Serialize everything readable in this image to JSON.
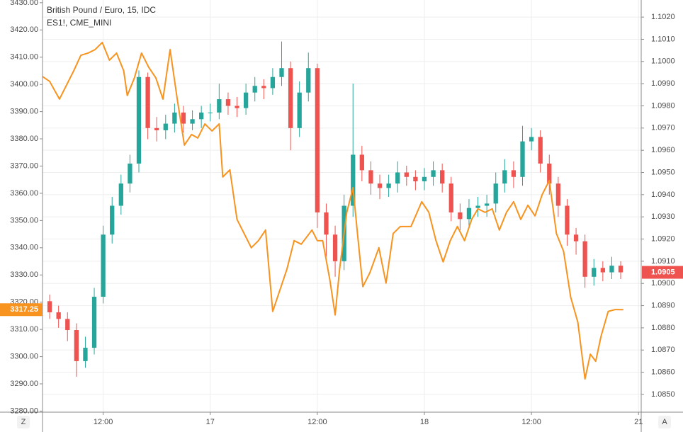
{
  "chart_data": {
    "type": "candlestick",
    "xlim": [
      -18.8,
      48.3
    ],
    "xticks": [
      {
        "value": -12,
        "label": "12:00"
      },
      {
        "value": 0,
        "label": "17"
      },
      {
        "value": 12,
        "label": "12:00"
      },
      {
        "value": 24,
        "label": "18"
      },
      {
        "value": 36,
        "label": "12:00"
      },
      {
        "value": 48,
        "label": "21"
      }
    ],
    "ylim": [
      3279.6,
      3431.0
    ],
    "yticks": [
      {
        "value": 3280,
        "label": "3280.00"
      },
      {
        "value": 3290,
        "label": "3290.00"
      },
      {
        "value": 3300,
        "label": "3300.00"
      },
      {
        "value": 3310,
        "label": "3310.00"
      },
      {
        "value": 3320,
        "label": "3320.00"
      },
      {
        "value": 3330,
        "label": "3330.00"
      },
      {
        "value": 3340,
        "label": "3340.00"
      },
      {
        "value": 3350,
        "label": "3350.00"
      },
      {
        "value": 3360,
        "label": "3360.00"
      },
      {
        "value": 3370,
        "label": "3370.00"
      },
      {
        "value": 3380,
        "label": "3380.00"
      },
      {
        "value": 3390,
        "label": "3390.00"
      },
      {
        "value": 3400,
        "label": "3400.00"
      },
      {
        "value": 3410,
        "label": "3410.00"
      },
      {
        "value": 3420,
        "label": "3420.00"
      },
      {
        "value": 3430,
        "label": "3430.00"
      }
    ],
    "y2lim": [
      1.0842,
      1.10277
    ],
    "y2ticks": [
      {
        "value": 1.085,
        "label": "1.0850"
      },
      {
        "value": 1.086,
        "label": "1.0860"
      },
      {
        "value": 1.087,
        "label": "1.0870"
      },
      {
        "value": 1.088,
        "label": "1.0880"
      },
      {
        "value": 1.089,
        "label": "1.0890"
      },
      {
        "value": 1.09,
        "label": "1.0900"
      },
      {
        "value": 1.091,
        "label": "1.0910"
      },
      {
        "value": 1.092,
        "label": "1.0920"
      },
      {
        "value": 1.093,
        "label": "1.0930"
      },
      {
        "value": 1.094,
        "label": "1.0940"
      },
      {
        "value": 1.095,
        "label": "1.0950"
      },
      {
        "value": 1.096,
        "label": "1.0960"
      },
      {
        "value": 1.097,
        "label": "1.0970"
      },
      {
        "value": 1.098,
        "label": "1.0980"
      },
      {
        "value": 1.099,
        "label": "1.0990"
      },
      {
        "value": 1.1,
        "label": "1.1000"
      },
      {
        "value": 1.101,
        "label": "1.1010"
      },
      {
        "value": 1.102,
        "label": "1.1020"
      }
    ],
    "grid": true,
    "buttons": [
      "Z",
      "A"
    ],
    "series": [
      {
        "name": "British Pound / Euro, 15, IDC",
        "type": "candlestick",
        "axis": "y2",
        "up_color": "#26a69a",
        "down_color": "#ef5350",
        "last_label": "1.0905",
        "x": [
          -18,
          -17,
          -16,
          -15,
          -14,
          -13,
          -12,
          -11,
          -10,
          -9,
          -8,
          -7,
          -6,
          -5,
          -4,
          -3,
          -2,
          -1,
          0,
          1,
          2,
          3,
          4,
          5,
          6,
          7,
          8,
          9,
          10,
          11,
          12,
          13,
          14,
          15,
          16,
          17,
          18,
          19,
          20,
          21,
          22,
          23,
          24,
          25,
          26,
          27,
          28,
          29,
          30,
          31,
          32,
          33,
          34,
          35,
          36,
          37,
          38,
          39,
          40,
          41,
          42,
          43,
          44,
          45,
          46
        ],
        "open": [
          1.0892,
          1.0887,
          1.0884,
          1.0879,
          1.0865,
          1.0871,
          1.0894,
          1.0922,
          1.0935,
          1.0945,
          1.0954,
          1.0993,
          1.097,
          1.0969,
          1.0972,
          1.0977,
          1.0972,
          1.0974,
          1.0977,
          1.0977,
          1.0983,
          1.098,
          1.0979,
          1.0986,
          1.0989,
          1.0988,
          1.0993,
          1.0997,
          1.097,
          1.0986,
          1.0997,
          1.0932,
          1.0922,
          1.091,
          1.0935,
          1.0958,
          1.0951,
          1.0945,
          1.0943,
          1.0945,
          1.095,
          1.0948,
          1.0946,
          1.0948,
          1.0951,
          1.0945,
          1.0932,
          1.0929,
          1.0934,
          1.0935,
          1.0936,
          1.0945,
          1.0951,
          1.0948,
          1.0964,
          1.0966,
          1.0954,
          1.0945,
          1.0935,
          1.0922,
          1.0919,
          1.0903,
          1.0907,
          1.0905,
          1.0908
        ],
        "high": [
          1.0895,
          1.089,
          1.0887,
          1.0882,
          1.0876,
          1.0898,
          1.0926,
          1.0939,
          1.0949,
          1.0958,
          1.0996,
          1.0995,
          1.0975,
          1.0976,
          1.0981,
          1.098,
          1.0978,
          1.098,
          1.0981,
          1.099,
          1.0986,
          1.0984,
          1.099,
          1.0993,
          1.0992,
          1.0997,
          1.1009,
          1.1,
          1.0991,
          1.1004,
          1.0999,
          1.0936,
          1.0926,
          1.094,
          1.099,
          1.0962,
          1.0955,
          1.0949,
          1.0949,
          1.0955,
          1.0953,
          1.0951,
          1.0952,
          1.0955,
          1.0954,
          1.0948,
          1.0936,
          1.0938,
          1.0939,
          1.094,
          1.095,
          1.0956,
          1.0955,
          1.0971,
          1.097,
          1.0969,
          1.0958,
          1.0948,
          1.0938,
          1.0925,
          1.0922,
          1.0911,
          1.091,
          1.0912,
          1.091
        ],
        "low": [
          1.0884,
          1.088,
          1.0874,
          1.0858,
          1.0862,
          1.0868,
          1.0891,
          1.0918,
          1.0931,
          1.0941,
          1.095,
          1.0965,
          1.0964,
          1.0965,
          1.0968,
          1.0968,
          1.0969,
          1.097,
          1.0973,
          1.0974,
          1.0976,
          1.0975,
          1.0976,
          1.0982,
          1.0983,
          1.0985,
          1.0989,
          1.096,
          1.0966,
          1.0982,
          1.0925,
          1.0912,
          1.0903,
          1.0906,
          1.093,
          1.0946,
          1.094,
          1.0938,
          1.0939,
          1.0941,
          1.0944,
          1.0942,
          1.0942,
          1.0944,
          1.0941,
          1.0928,
          1.0924,
          1.0925,
          1.093,
          1.093,
          1.0932,
          1.0941,
          1.0943,
          1.0944,
          1.096,
          1.095,
          1.094,
          1.093,
          1.0917,
          1.0913,
          1.0898,
          1.0899,
          1.0901,
          1.0902,
          1.0902
        ],
        "close": [
          1.0887,
          1.0884,
          1.0879,
          1.0865,
          1.0871,
          1.0894,
          1.0922,
          1.0935,
          1.0945,
          1.0954,
          1.0993,
          1.097,
          1.0969,
          1.0972,
          1.0977,
          1.0972,
          1.0974,
          1.0977,
          1.0977,
          1.0983,
          1.098,
          1.0979,
          1.0986,
          1.0989,
          1.0988,
          1.0993,
          1.0997,
          1.097,
          1.0986,
          1.0997,
          1.0932,
          1.0922,
          1.091,
          1.0935,
          1.0958,
          1.0951,
          1.0945,
          1.0943,
          1.0945,
          1.095,
          1.0948,
          1.0946,
          1.0948,
          1.0951,
          1.0945,
          1.0932,
          1.0929,
          1.0934,
          1.0935,
          1.0936,
          1.0945,
          1.0951,
          1.0948,
          1.0964,
          1.0966,
          1.0954,
          1.0945,
          1.0935,
          1.0922,
          1.0919,
          1.0903,
          1.0907,
          1.0905,
          1.0908,
          1.0905
        ]
      },
      {
        "name": "ES1!, CME_MINI",
        "type": "line",
        "axis": "y",
        "color": "#f7931e",
        "last_label": "3317.25",
        "x": [
          -18.8,
          -18.0,
          -16.9,
          -16.1,
          -15.3,
          -14.5,
          -13.7,
          -12.9,
          -12.1,
          -11.3,
          -10.5,
          -9.7,
          -9.3,
          -8.5,
          -7.7,
          -6.9,
          -6.1,
          -5.3,
          -4.5,
          -3.7,
          -2.9,
          -2.1,
          -1.4,
          -0.6,
          0.2,
          1.0,
          1.4,
          2.2,
          3.0,
          3.8,
          4.6,
          5.4,
          6.2,
          7.0,
          7.8,
          8.6,
          9.4,
          10.2,
          11.4,
          12.0,
          12.6,
          13.4,
          14.0,
          14.5,
          15.3,
          16.0,
          16.5,
          17.1,
          17.9,
          18.9,
          19.7,
          20.5,
          21.3,
          22.5,
          23.7,
          24.5,
          25.3,
          26.1,
          26.9,
          27.7,
          28.5,
          29.3,
          30.0,
          30.8,
          31.6,
          32.4,
          33.2,
          34.0,
          34.8,
          35.6,
          36.4,
          37.2,
          38.0,
          38.8,
          39.6,
          40.4,
          41.2,
          42.0,
          42.6,
          43.2,
          43.8,
          44.6,
          45.4,
          46.3
        ],
        "values": [
          3402.9,
          3401.1,
          3394.6,
          3399.8,
          3405.0,
          3410.7,
          3411.5,
          3412.8,
          3415.4,
          3408.9,
          3411.5,
          3405.0,
          3395.9,
          3402.4,
          3411.5,
          3406.3,
          3402.4,
          3394.6,
          3412.8,
          3394.6,
          3377.7,
          3381.6,
          3380.3,
          3385.5,
          3382.9,
          3385.5,
          3366.0,
          3368.6,
          3350.4,
          3345.2,
          3340.0,
          3342.6,
          3346.5,
          3316.6,
          3324.4,
          3332.2,
          3342.6,
          3341.3,
          3346.5,
          3342.6,
          3342.6,
          3328.3,
          3315.3,
          3332.2,
          3353.0,
          3362.1,
          3345.2,
          3325.7,
          3330.9,
          3340.0,
          3327.0,
          3345.2,
          3347.8,
          3347.8,
          3356.9,
          3353.0,
          3342.6,
          3334.8,
          3342.6,
          3347.8,
          3342.6,
          3350.4,
          3354.3,
          3353.0,
          3354.3,
          3346.5,
          3353.0,
          3356.9,
          3350.4,
          3355.6,
          3351.7,
          3359.5,
          3364.7,
          3345.2,
          3338.7,
          3321.8,
          3312.6,
          3291.8,
          3300.9,
          3298.3,
          3307.5,
          3316.6,
          3317.3,
          3317.25
        ]
      }
    ]
  }
}
